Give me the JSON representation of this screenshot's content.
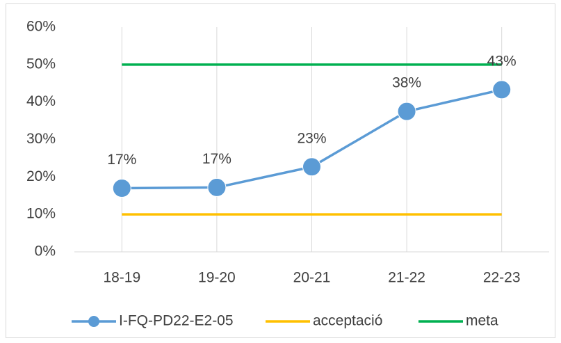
{
  "chart_data": {
    "type": "line",
    "categories": [
      "18-19",
      "19-20",
      "20-21",
      "21-22",
      "22-23"
    ],
    "series": [
      {
        "name": "I-FQ-PD22-E2-05",
        "color": "#5b9bd5",
        "values": [
          17,
          17.2,
          22.7,
          37.5,
          43.3
        ],
        "value_labels": [
          "17%",
          "17%",
          "23%",
          "38%",
          "43%"
        ],
        "markers": true
      },
      {
        "name": "acceptació",
        "color": "#ffc000",
        "values": [
          10,
          10,
          10,
          10,
          10
        ]
      },
      {
        "name": "meta",
        "color": "#00b050",
        "values": [
          50,
          50,
          50,
          50,
          50
        ]
      }
    ],
    "ylim": [
      0,
      60
    ],
    "yticks": [
      {
        "value": 0,
        "label": "0%"
      },
      {
        "value": 10,
        "label": "10%"
      },
      {
        "value": 20,
        "label": "20%"
      },
      {
        "value": 30,
        "label": "30%"
      },
      {
        "value": 40,
        "label": "40%"
      },
      {
        "value": 50,
        "label": "50%"
      },
      {
        "value": 60,
        "label": "60%"
      }
    ],
    "xgrid": true,
    "legend": "bottom"
  }
}
